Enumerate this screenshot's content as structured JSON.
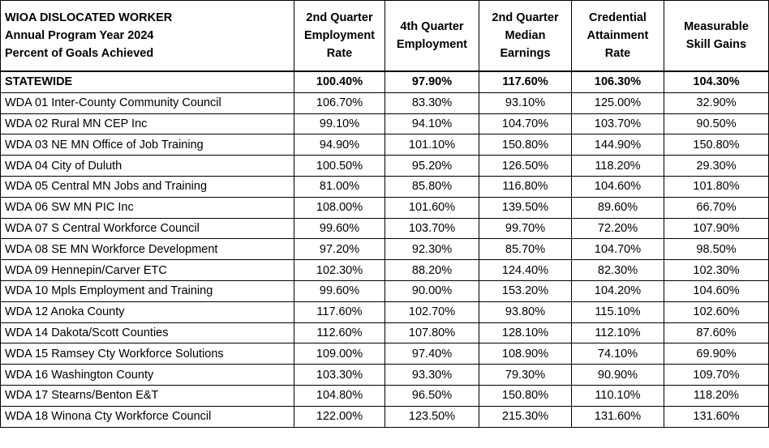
{
  "table": {
    "title": [
      "WIOA DISLOCATED WORKER",
      "Annual Program Year 2024",
      "Percent of Goals Achieved"
    ],
    "columns": [
      [
        "2nd Quarter",
        "Employment",
        "Rate"
      ],
      [
        "4th Quarter",
        "Employment"
      ],
      [
        "2nd Quarter",
        "Median",
        "Earnings"
      ],
      [
        "Credential",
        "Attainment",
        "Rate"
      ],
      [
        "Measurable",
        "Skill Gains"
      ]
    ],
    "rows": [
      [
        "STATEWIDE",
        "100.40%",
        "97.90%",
        "117.60%",
        "106.30%",
        "104.30%"
      ],
      [
        "WDA 01 Inter-County Community Council",
        "106.70%",
        "83.30%",
        "93.10%",
        "125.00%",
        "32.90%"
      ],
      [
        "WDA 02 Rural MN CEP Inc",
        "99.10%",
        "94.10%",
        "104.70%",
        "103.70%",
        "90.50%"
      ],
      [
        "WDA 03 NE MN Office of Job Training",
        "94.90%",
        "101.10%",
        "150.80%",
        "144.90%",
        "150.80%"
      ],
      [
        "WDA 04 City of Duluth",
        "100.50%",
        "95.20%",
        "126.50%",
        "118.20%",
        "29.30%"
      ],
      [
        "WDA 05 Central MN Jobs and Training",
        "81.00%",
        "85.80%",
        "116.80%",
        "104.60%",
        "101.80%"
      ],
      [
        "WDA 06 SW MN PIC Inc",
        "108.00%",
        "101.60%",
        "139.50%",
        "89.60%",
        "66.70%"
      ],
      [
        "WDA 07 S Central Workforce Council",
        "99.60%",
        "103.70%",
        "99.70%",
        "72.20%",
        "107.90%"
      ],
      [
        "WDA 08 SE MN Workforce Development",
        "97.20%",
        "92.30%",
        "85.70%",
        "104.70%",
        "98.50%"
      ],
      [
        "WDA 09 Hennepin/Carver ETC",
        "102.30%",
        "88.20%",
        "124.40%",
        "82.30%",
        "102.30%"
      ],
      [
        "WDA 10 Mpls Employment and Training",
        "99.60%",
        "90.00%",
        "153.20%",
        "104.20%",
        "104.60%"
      ],
      [
        "WDA 12 Anoka County",
        "117.60%",
        "102.70%",
        "93.80%",
        "115.10%",
        "102.60%"
      ],
      [
        "WDA 14 Dakota/Scott Counties",
        "112.60%",
        "107.80%",
        "128.10%",
        "112.10%",
        "87.60%"
      ],
      [
        "WDA 15 Ramsey Cty Workforce Solutions",
        "109.00%",
        "97.40%",
        "108.90%",
        "74.10%",
        "69.90%"
      ],
      [
        "WDA 16 Washington County",
        "103.30%",
        "93.30%",
        "79.30%",
        "90.90%",
        "109.70%"
      ],
      [
        "WDA 17 Stearns/Benton E&T",
        "104.80%",
        "96.50%",
        "150.80%",
        "110.10%",
        "118.20%"
      ],
      [
        "WDA 18 Winona Cty Workforce Council",
        "122.00%",
        "123.50%",
        "215.30%",
        "131.60%",
        "131.60%"
      ]
    ]
  }
}
